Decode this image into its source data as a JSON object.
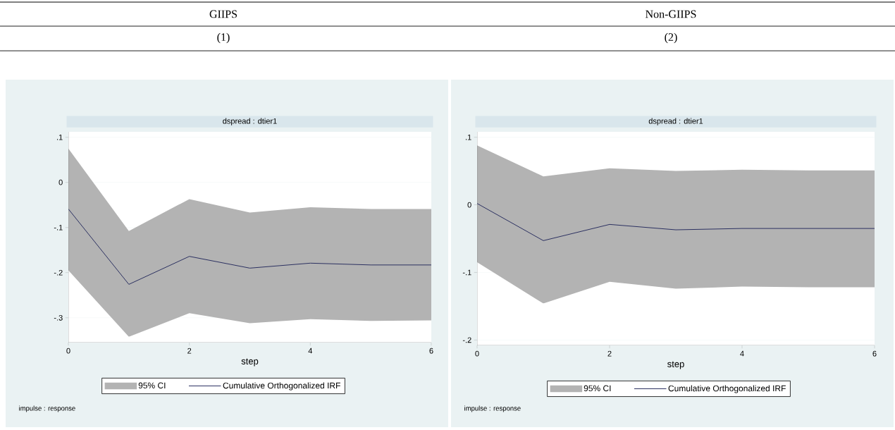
{
  "chart_data": [
    {
      "type": "line",
      "title": "dspread : dtier1",
      "xlabel": "step",
      "annotations": [
        "GIIPS",
        "(1)",
        "impulse : response",
        "95% CI"
      ],
      "x": [
        0,
        1,
        2,
        3,
        4,
        5,
        6
      ],
      "xlim": [
        0,
        6
      ],
      "xticks": [
        0,
        2,
        4,
        6
      ],
      "ylim": [
        -0.355,
        0.112
      ],
      "yticks": [
        {
          "value": 0.1,
          "label": ".1"
        },
        0,
        {
          "value": -0.1,
          "label": "-.1"
        },
        {
          "value": -0.2,
          "label": "-.2"
        },
        {
          "value": -0.3,
          "label": "-.3"
        }
      ],
      "grid": "y",
      "legend": "bottom",
      "series": [
        {
          "name": "Cumulative Orthogonalized IRF",
          "color": "#2b3060",
          "values": [
            -0.059,
            -0.226,
            -0.164,
            -0.19,
            -0.179,
            -0.183,
            -0.183
          ],
          "lower": [
            -0.195,
            -0.342,
            -0.29,
            -0.312,
            -0.303,
            -0.307,
            -0.306
          ],
          "upper": [
            0.075,
            -0.108,
            -0.037,
            -0.067,
            -0.055,
            -0.059,
            -0.059
          ]
        }
      ]
    },
    {
      "type": "line",
      "title": "dspread : dtier1",
      "xlabel": "step",
      "annotations": [
        "Non-GIIPS",
        "(2)",
        "impulse : response",
        "95% CI"
      ],
      "x": [
        0,
        1,
        2,
        3,
        4,
        5,
        6
      ],
      "xlim": [
        0,
        6
      ],
      "xticks": [
        0,
        2,
        4,
        6
      ],
      "ylim": [
        -0.208,
        0.108
      ],
      "yticks": [
        {
          "value": 0.1,
          "label": ".1"
        },
        0,
        {
          "value": -0.1,
          "label": "-.1"
        },
        {
          "value": -0.2,
          "label": "-.2"
        }
      ],
      "grid": "y",
      "legend": "bottom",
      "series": [
        {
          "name": "Cumulative Orthogonalized IRF",
          "color": "#2b3060",
          "values": [
            0.002,
            -0.053,
            -0.029,
            -0.037,
            -0.035,
            -0.035,
            -0.035
          ],
          "lower": [
            -0.085,
            -0.146,
            -0.114,
            -0.124,
            -0.121,
            -0.122,
            -0.122
          ],
          "upper": [
            0.088,
            0.042,
            0.054,
            0.05,
            0.052,
            0.051,
            0.051
          ]
        }
      ]
    }
  ]
}
